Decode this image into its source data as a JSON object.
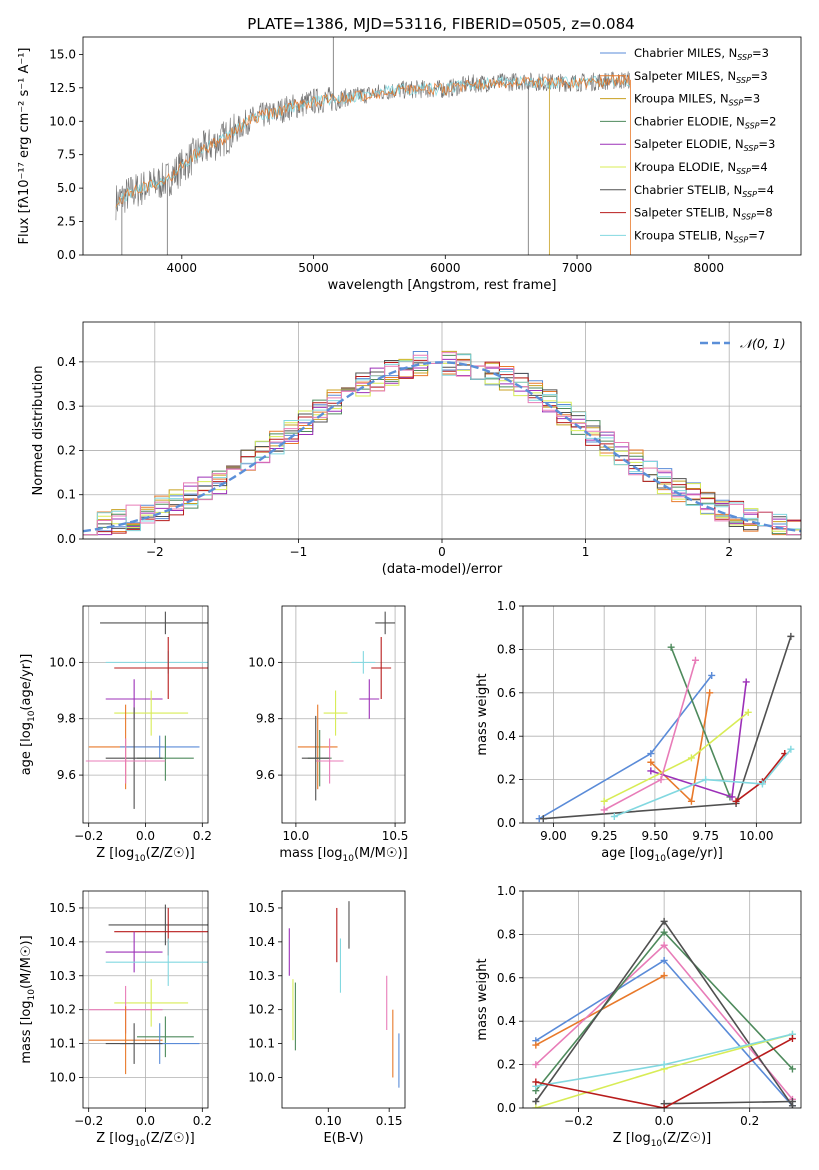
{
  "figure_title": "PLATE=1386, MJD=53116, FIBERID=0505, z=0.084",
  "colors": {
    "Chabrier MILES": "#5a8bd8",
    "Salpeter MILES": "#e8792a",
    "Kroupa MILES": "#c8a020",
    "Chabrier ELODIE": "#4e8a5c",
    "Salpeter ELODIE": "#9c30b8",
    "Kroupa ELODIE": "#d8ec56",
    "Chabrier STELIB": "#505050",
    "Salpeter STELIB": "#b81c1c",
    "Kroupa STELIB": "#82d8e0",
    "Pink": "#e87cb8",
    "Normal": "#5b8fd8"
  },
  "chart_data": [
    {
      "id": "spectrum",
      "type": "line",
      "title": "PLATE=1386, MJD=53116, FIBERID=0505, z=0.084",
      "xlabel": "wavelength [Angstrom, rest frame]",
      "ylabel": "Flux [fλ10⁻¹⁷ erg cm⁻² s⁻¹ A⁻¹]",
      "xlim": [
        3250,
        8700
      ],
      "ylim": [
        0,
        16.3
      ],
      "xticks": [
        "4000",
        "5000",
        "6000",
        "7000",
        "8000"
      ],
      "yticks": [
        "0.0",
        "2.5",
        "5.0",
        "7.5",
        "10.0",
        "12.5",
        "15.0"
      ],
      "grid": false,
      "legend_position": "right",
      "continuum": {
        "x": [
          3500,
          3600,
          3700,
          3800,
          3900,
          4000,
          4100,
          4200,
          4300,
          4400,
          4500,
          4600,
          4700,
          4800,
          4900,
          5000,
          5200,
          5400,
          5600,
          5800,
          6000,
          6200,
          6400,
          6600,
          6800,
          7000,
          7200,
          7400
        ],
        "y": [
          4.0,
          4.6,
          5.0,
          5.3,
          5.7,
          6.6,
          7.5,
          8.1,
          8.6,
          9.2,
          10.0,
          10.4,
          10.6,
          11.0,
          11.2,
          11.5,
          11.7,
          12.0,
          12.3,
          12.4,
          12.4,
          12.8,
          12.9,
          13.0,
          12.9,
          12.9,
          13.0,
          13.1
        ]
      },
      "spikes": [
        [
          5150,
          16.3
        ],
        [
          6790,
          0
        ],
        [
          6630,
          0
        ],
        [
          7405,
          0
        ],
        [
          3545,
          0
        ],
        [
          3890,
          0
        ]
      ],
      "series": [
        {
          "name": "Chabrier MILES",
          "label_main": "Chabrier MILES, N",
          "label_sub": "SSP",
          "label_end": "=3"
        },
        {
          "name": "Salpeter MILES",
          "label_main": "Salpeter MILES, N",
          "label_sub": "SSP",
          "label_end": "=3"
        },
        {
          "name": "Kroupa MILES",
          "label_main": "Kroupa MILES, N",
          "label_sub": "SSP",
          "label_end": "=3"
        },
        {
          "name": "Chabrier ELODIE",
          "label_main": "Chabrier ELODIE, N",
          "label_sub": "SSP",
          "label_end": "=2"
        },
        {
          "name": "Salpeter ELODIE",
          "label_main": "Salpeter ELODIE, N",
          "label_sub": "SSP",
          "label_end": "=3"
        },
        {
          "name": "Kroupa ELODIE",
          "label_main": "Kroupa ELODIE, N",
          "label_sub": "SSP",
          "label_end": "=4"
        },
        {
          "name": "Chabrier STELIB",
          "label_main": "Chabrier STELIB, N",
          "label_sub": "SSP",
          "label_end": "=4"
        },
        {
          "name": "Salpeter STELIB",
          "label_main": "Salpeter STELIB, N",
          "label_sub": "SSP",
          "label_end": "=8"
        },
        {
          "name": "Kroupa STELIB",
          "label_main": "Kroupa STELIB, N",
          "label_sub": "SSP",
          "label_end": "=7"
        }
      ]
    },
    {
      "id": "residuals",
      "type": "histogram",
      "xlabel": "(data-model)/error",
      "ylabel": "Normed distribution",
      "xlim": [
        -2.5,
        2.5
      ],
      "ylim": [
        0,
        0.49
      ],
      "xticks": [
        "−2",
        "−1",
        "0",
        "1",
        "2"
      ],
      "yticks": [
        "0.0",
        "0.1",
        "0.2",
        "0.3",
        "0.4"
      ],
      "grid": true,
      "bin_edges": [
        -2.5,
        -2.4,
        -2.3,
        -2.2,
        -2.1,
        -2.0,
        -1.9,
        -1.8,
        -1.7,
        -1.6,
        -1.5,
        -1.4,
        -1.3,
        -1.2,
        -1.1,
        -1.0,
        -0.9,
        -0.8,
        -0.7,
        -0.6,
        -0.5,
        -0.4,
        -0.3,
        -0.2,
        -0.1,
        0.0,
        0.1,
        0.2,
        0.3,
        0.4,
        0.5,
        0.6,
        0.7,
        0.8,
        0.9,
        1.0,
        1.1,
        1.2,
        1.3,
        1.4,
        1.5,
        1.6,
        1.7,
        1.8,
        1.9,
        2.0,
        2.1,
        2.2,
        2.3,
        2.4,
        2.5
      ],
      "reference_curve": {
        "name": "𝒩(0, 1)",
        "label_main": "𝒩(0, 1)",
        "style": "dashed"
      },
      "legend_position": "top-right"
    },
    {
      "id": "age-vs-z",
      "type": "scatter",
      "xlabel_main": "Z [log",
      "xlabel_sub": "10",
      "xlabel_end": "(Z/Z☉)]",
      "ylabel_main": "age  [log",
      "ylabel_sub": "10",
      "ylabel_end": "(age/yr)]",
      "xlim": [
        -0.22,
        0.22
      ],
      "ylim": [
        9.43,
        10.2
      ],
      "xticks": [
        "−0.2",
        "0.0",
        "0.2"
      ],
      "yticks": [
        "9.6",
        "9.8",
        "10.0"
      ],
      "grid": true,
      "points": [
        {
          "series": "Chabrier STELIB",
          "x": 0.07,
          "y": 10.14,
          "xerr": 0.23,
          "yerr": 0.04
        },
        {
          "series": "Kroupa STELIB",
          "x": 0.08,
          "y": 10.0,
          "xerr": 0.22,
          "yerr": 0.04
        },
        {
          "series": "Salpeter STELIB",
          "x": 0.08,
          "y": 9.98,
          "xerr": 0.19,
          "yerr": 0.11
        },
        {
          "series": "Salpeter ELODIE",
          "x": -0.04,
          "y": 9.87,
          "xerr": 0.1,
          "yerr": 0.07
        },
        {
          "series": "Kroupa ELODIE",
          "x": 0.02,
          "y": 9.82,
          "xerr": 0.13,
          "yerr": 0.08
        },
        {
          "series": "Salpeter MILES",
          "x": -0.07,
          "y": 9.7,
          "xerr": 0.13,
          "yerr": 0.15
        },
        {
          "series": "Chabrier MILES",
          "x": 0.05,
          "y": 9.7,
          "xerr": 0.14,
          "yerr": 0.04
        },
        {
          "series": "Chabrier ELODIE",
          "x": 0.07,
          "y": 9.66,
          "xerr": 0.1,
          "yerr": 0.08
        },
        {
          "series": "Chabrier STELIB",
          "x": -0.04,
          "y": 9.66,
          "xerr": 0.1,
          "yerr": 0.18
        },
        {
          "series": "Pink",
          "x": -0.07,
          "y": 9.65,
          "xerr": 0.14,
          "yerr": 0.08
        }
      ]
    },
    {
      "id": "age-vs-mass",
      "type": "scatter",
      "xlabel_main": "mass [log",
      "xlabel_sub": "10",
      "xlabel_end": "(M/M☉)]",
      "xlim": [
        9.93,
        10.55
      ],
      "ylim": [
        9.43,
        10.2
      ],
      "xticks": [
        "10.0",
        "10.5"
      ],
      "yticks": [
        "9.6",
        "9.8",
        "10.0"
      ],
      "grid": true,
      "points": [
        {
          "series": "Chabrier STELIB",
          "x": 10.45,
          "y": 10.14,
          "xerr": 0.05,
          "yerr": 0.04
        },
        {
          "series": "Kroupa STELIB",
          "x": 10.34,
          "y": 10.0,
          "xerr": 0.06,
          "yerr": 0.04
        },
        {
          "series": "Salpeter STELIB",
          "x": 10.43,
          "y": 9.98,
          "xerr": 0.05,
          "yerr": 0.11
        },
        {
          "series": "Salpeter ELODIE",
          "x": 10.37,
          "y": 9.87,
          "xerr": 0.05,
          "yerr": 0.07
        },
        {
          "series": "Kroupa ELODIE",
          "x": 10.2,
          "y": 9.82,
          "xerr": 0.06,
          "yerr": 0.08
        },
        {
          "series": "Salpeter MILES",
          "x": 10.11,
          "y": 9.7,
          "xerr": 0.1,
          "yerr": 0.15
        },
        {
          "series": "Chabrier ELODIE",
          "x": 10.12,
          "y": 9.66,
          "xerr": 0.06,
          "yerr": 0.1
        },
        {
          "series": "Pink",
          "x": 10.17,
          "y": 9.65,
          "xerr": 0.07,
          "yerr": 0.08
        },
        {
          "series": "Chabrier STELIB",
          "x": 10.1,
          "y": 9.66,
          "xerr": 0.07,
          "yerr": 0.15
        }
      ]
    },
    {
      "id": "weight-vs-age",
      "type": "line",
      "xlabel_main": "age  [log",
      "xlabel_sub": "10",
      "xlabel_end": "(age/yr)]",
      "ylabel": "mass weight",
      "xlim": [
        8.85,
        10.22
      ],
      "ylim": [
        0,
        1
      ],
      "xticks": [
        "9.00",
        "9.25",
        "9.50",
        "9.75",
        "10.00"
      ],
      "yticks": [
        "0.0",
        "0.2",
        "0.4",
        "0.6",
        "0.8",
        "1.0"
      ],
      "grid": true,
      "series": [
        {
          "name": "Chabrier MILES",
          "x": [
            8.93,
            9.48,
            9.78
          ],
          "y": [
            0.02,
            0.32,
            0.68
          ]
        },
        {
          "name": "Salpeter MILES",
          "x": [
            9.48,
            9.68,
            9.77
          ],
          "y": [
            0.28,
            0.1,
            0.6
          ]
        },
        {
          "name": "Chabrier ELODIE",
          "x": [
            9.58,
            9.87
          ],
          "y": [
            0.81,
            0.12
          ]
        },
        {
          "name": "Salpeter ELODIE",
          "x": [
            9.48,
            9.88,
            9.95
          ],
          "y": [
            0.24,
            0.12,
            0.65
          ]
        },
        {
          "name": "Kroupa ELODIE",
          "x": [
            9.25,
            9.68,
            9.96
          ],
          "y": [
            0.1,
            0.3,
            0.51
          ]
        },
        {
          "name": "Chabrier STELIB",
          "x": [
            8.95,
            9.9,
            10.17
          ],
          "y": [
            0.02,
            0.09,
            0.86
          ]
        },
        {
          "name": "Salpeter STELIB",
          "x": [
            9.9,
            10.03,
            10.14
          ],
          "y": [
            0.1,
            0.19,
            0.32
          ]
        },
        {
          "name": "Kroupa STELIB",
          "x": [
            9.3,
            9.75,
            10.03,
            10.17
          ],
          "y": [
            0.03,
            0.2,
            0.18,
            0.34
          ]
        },
        {
          "name": "Pink",
          "x": [
            9.25,
            9.53,
            9.7
          ],
          "y": [
            0.06,
            0.2,
            0.75
          ]
        }
      ]
    },
    {
      "id": "mass-vs-z",
      "type": "scatter",
      "xlabel_main": "Z [log",
      "xlabel_sub": "10",
      "xlabel_end": "(Z/Z☉)]",
      "ylabel_main": "mass [log",
      "ylabel_sub": "10",
      "ylabel_end": "(M/M☉)]",
      "xlim": [
        -0.22,
        0.22
      ],
      "ylim": [
        9.91,
        10.55
      ],
      "xticks": [
        "−0.2",
        "0.0",
        "0.2"
      ],
      "yticks": [
        "10.0",
        "10.1",
        "10.2",
        "10.3",
        "10.4",
        "10.5"
      ],
      "grid": true,
      "points": [
        {
          "series": "Chabrier STELIB",
          "x": 0.07,
          "y": 10.45,
          "xerr": 0.2,
          "yerr": 0.06
        },
        {
          "series": "Salpeter STELIB",
          "x": 0.08,
          "y": 10.43,
          "xerr": 0.19,
          "yerr": 0.07
        },
        {
          "series": "Salpeter ELODIE",
          "x": -0.04,
          "y": 10.37,
          "xerr": 0.1,
          "yerr": 0.06
        },
        {
          "series": "Kroupa STELIB",
          "x": 0.08,
          "y": 10.34,
          "xerr": 0.22,
          "yerr": 0.07
        },
        {
          "series": "Kroupa ELODIE",
          "x": 0.02,
          "y": 10.22,
          "xerr": 0.13,
          "yerr": 0.07
        },
        {
          "series": "Pink",
          "x": -0.07,
          "y": 10.2,
          "xerr": 0.13,
          "yerr": 0.07
        },
        {
          "series": "Chabrier ELODIE",
          "x": 0.07,
          "y": 10.12,
          "xerr": 0.1,
          "yerr": 0.06
        },
        {
          "series": "Salpeter MILES",
          "x": -0.07,
          "y": 10.11,
          "xerr": 0.13,
          "yerr": 0.1
        },
        {
          "series": "Chabrier MILES",
          "x": 0.05,
          "y": 10.1,
          "xerr": 0.14,
          "yerr": 0.06
        },
        {
          "series": "Chabrier STELIB",
          "x": -0.04,
          "y": 10.1,
          "xerr": 0.1,
          "yerr": 0.06
        }
      ]
    },
    {
      "id": "mass-vs-ebv",
      "type": "scatter",
      "xlabel": "E(B-V)",
      "xlim": [
        0.062,
        0.163
      ],
      "ylim": [
        9.91,
        10.55
      ],
      "xticks": [
        "0.10",
        "0.15"
      ],
      "yticks": [
        "10.0",
        "10.1",
        "10.2",
        "10.3",
        "10.4",
        "10.5"
      ],
      "grid": false,
      "points": [
        {
          "series": "Salpeter ELODIE",
          "x": 0.068,
          "y": 10.37,
          "xerr": 0,
          "yerr": 0.07
        },
        {
          "series": "Kroupa ELODIE",
          "x": 0.071,
          "y": 10.2,
          "xerr": 0,
          "yerr": 0.09
        },
        {
          "series": "Chabrier ELODIE",
          "x": 0.073,
          "y": 10.18,
          "xerr": 0,
          "yerr": 0.1
        },
        {
          "series": "Salpeter STELIB",
          "x": 0.107,
          "y": 10.42,
          "xerr": 0,
          "yerr": 0.08
        },
        {
          "series": "Chabrier STELIB",
          "x": 0.117,
          "y": 10.45,
          "xerr": 0,
          "yerr": 0.07
        },
        {
          "series": "Kroupa STELIB",
          "x": 0.11,
          "y": 10.33,
          "xerr": 0,
          "yerr": 0.08
        },
        {
          "series": "Pink",
          "x": 0.148,
          "y": 10.22,
          "xerr": 0,
          "yerr": 0.08
        },
        {
          "series": "Salpeter MILES",
          "x": 0.153,
          "y": 10.1,
          "xerr": 0,
          "yerr": 0.1
        },
        {
          "series": "Chabrier MILES",
          "x": 0.158,
          "y": 10.05,
          "xerr": 0,
          "yerr": 0.08
        }
      ]
    },
    {
      "id": "weight-vs-z",
      "type": "line",
      "xlabel_main": "Z [log",
      "xlabel_sub": "10",
      "xlabel_end": "(Z/Z☉)]",
      "ylabel": "mass weight",
      "xlim": [
        -0.33,
        0.32
      ],
      "ylim": [
        0,
        1
      ],
      "xticks": [
        "−0.2",
        "0.0",
        "0.2"
      ],
      "yticks": [
        "0.0",
        "0.2",
        "0.4",
        "0.6",
        "0.8",
        "1.0"
      ],
      "grid": true,
      "series": [
        {
          "name": "Chabrier MILES",
          "x": [
            -0.3,
            0.0,
            0.3
          ],
          "y": [
            0.31,
            0.68,
            0.01
          ]
        },
        {
          "name": "Salpeter MILES",
          "x": [
            -0.3,
            0.0
          ],
          "y": [
            0.29,
            0.61
          ]
        },
        {
          "name": "Pink",
          "x": [
            -0.3,
            0.0,
            0.3
          ],
          "y": [
            0.2,
            0.75,
            0.04
          ]
        },
        {
          "name": "Chabrier ELODIE",
          "x": [
            -0.3,
            0.0,
            0.3
          ],
          "y": [
            0.08,
            0.81,
            0.18
          ]
        },
        {
          "name": "Chabrier STELIB",
          "x": [
            -0.3,
            0.0,
            0.3
          ],
          "y": [
            0.03,
            0.86,
            0.01
          ]
        },
        {
          "name": "Chabrier STELIB",
          "x": [
            0.0,
            0.3
          ],
          "y": [
            0.02,
            0.03
          ]
        },
        {
          "name": "Kroupa ELODIE",
          "x": [
            -0.3,
            0.0,
            0.3
          ],
          "y": [
            0.0,
            0.18,
            0.34
          ]
        },
        {
          "name": "Kroupa STELIB",
          "x": [
            -0.3,
            0.0,
            0.3
          ],
          "y": [
            0.1,
            0.2,
            0.34
          ]
        },
        {
          "name": "Salpeter STELIB",
          "x": [
            -0.3,
            0.0,
            0.3
          ],
          "y": [
            0.12,
            0.0,
            0.32
          ]
        }
      ]
    }
  ]
}
